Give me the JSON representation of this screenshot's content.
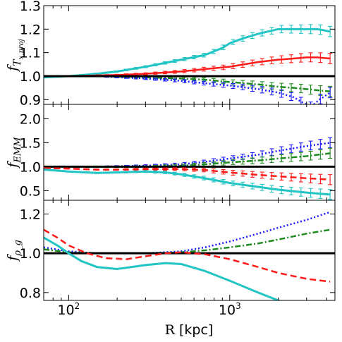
{
  "chart_data": [
    {
      "type": "line",
      "ylabel": "f_{T_{x,proj}}",
      "ylim": [
        0.88,
        1.3
      ],
      "yticks": [
        "0.9",
        "1.0",
        "1.1",
        "1.2",
        "1.3"
      ],
      "ytick_values": [
        0.9,
        1.0,
        1.1,
        1.2,
        1.3
      ],
      "xscale": "log",
      "xlim": [
        70,
        4500
      ],
      "series": [
        {
          "color": "#22c4c4",
          "style": "solid",
          "errorbars": true,
          "x": [
            70,
            100,
            150,
            200,
            300,
            500,
            700,
            900,
            1000,
            1200,
            1500,
            2000,
            2500,
            3000,
            3500,
            4200
          ],
          "y": [
            0.995,
            1.0,
            1.01,
            1.02,
            1.04,
            1.07,
            1.09,
            1.12,
            1.14,
            1.16,
            1.18,
            1.2,
            1.2,
            1.2,
            1.2,
            1.19
          ]
        },
        {
          "color": "#ff1a1a",
          "style": "solid",
          "errorbars": true,
          "x": [
            70,
            100,
            200,
            300,
            500,
            700,
            1000,
            1500,
            2000,
            2500,
            3000,
            3500,
            4200
          ],
          "y": [
            1.0,
            1.0,
            1.005,
            1.01,
            1.02,
            1.03,
            1.04,
            1.06,
            1.07,
            1.075,
            1.08,
            1.08,
            1.075
          ]
        },
        {
          "color": "#1f8a1f",
          "style": "dashdot",
          "errorbars": true,
          "x": [
            70,
            150,
            300,
            500,
            700,
            1000,
            1500,
            2000,
            2500,
            3000,
            3500,
            4200
          ],
          "y": [
            1.0,
            1.0,
            0.995,
            0.99,
            0.985,
            0.975,
            0.965,
            0.955,
            0.95,
            0.945,
            0.94,
            0.935
          ]
        },
        {
          "color": "#1a1aff",
          "style": "dotted",
          "errorbars": true,
          "x": [
            70,
            150,
            300,
            500,
            700,
            1000,
            1500,
            2000,
            2500,
            2800,
            3200,
            3600,
            4200
          ],
          "y": [
            1.0,
            1.0,
            0.99,
            0.98,
            0.97,
            0.96,
            0.945,
            0.93,
            0.91,
            0.89,
            0.87,
            0.9,
            0.93
          ]
        },
        {
          "color": "#000000",
          "style": "solid",
          "errorbars": true,
          "x": [
            70,
            4500
          ],
          "y": [
            1.0,
            1.0
          ]
        }
      ]
    },
    {
      "type": "line",
      "ylabel": "f_{EMM}",
      "ylim": [
        0.3,
        2.3
      ],
      "yticks": [
        "0.5",
        "1.0",
        "1.5",
        "2.0"
      ],
      "ytick_values": [
        0.5,
        1.0,
        1.5,
        2.0
      ],
      "xscale": "log",
      "xlim": [
        70,
        4500
      ],
      "series": [
        {
          "color": "#1a1aff",
          "style": "dotted",
          "errorbars": true,
          "x": [
            70,
            150,
            300,
            500,
            700,
            1000,
            1500,
            2000,
            3000,
            4200
          ],
          "y": [
            1.0,
            1.0,
            1.02,
            1.05,
            1.1,
            1.17,
            1.25,
            1.33,
            1.43,
            1.5
          ]
        },
        {
          "color": "#1f8a1f",
          "style": "dashdot",
          "errorbars": true,
          "x": [
            70,
            150,
            300,
            500,
            700,
            1000,
            1500,
            2000,
            3000,
            4200
          ],
          "y": [
            1.0,
            1.0,
            1.0,
            1.02,
            1.05,
            1.09,
            1.13,
            1.17,
            1.22,
            1.28
          ]
        },
        {
          "color": "#000000",
          "style": "solid",
          "errorbars": true,
          "x": [
            70,
            4500
          ],
          "y": [
            1.0,
            1.0
          ]
        },
        {
          "color": "#ff1a1a",
          "style": "dashed",
          "errorbars": true,
          "x": [
            70,
            100,
            150,
            200,
            300,
            500,
            700,
            1000,
            1500,
            2000,
            3000,
            4200
          ],
          "y": [
            0.97,
            0.96,
            0.94,
            0.94,
            0.95,
            0.95,
            0.93,
            0.88,
            0.83,
            0.8,
            0.76,
            0.73
          ]
        },
        {
          "color": "#22c4c4",
          "style": "solid",
          "errorbars": true,
          "x": [
            70,
            100,
            150,
            200,
            300,
            400,
            500,
            700,
            1000,
            1500,
            2000,
            3000,
            4200
          ],
          "y": [
            0.94,
            0.9,
            0.87,
            0.88,
            0.9,
            0.88,
            0.84,
            0.76,
            0.66,
            0.58,
            0.52,
            0.46,
            0.42
          ]
        }
      ]
    },
    {
      "type": "line",
      "ylabel": "f_{ρ_g}",
      "ylim": [
        0.76,
        1.27
      ],
      "yticks": [
        "0.8",
        "1.0",
        "1.2"
      ],
      "ytick_values": [
        0.8,
        1.0,
        1.2
      ],
      "xscale": "log",
      "xlim": [
        70,
        4500
      ],
      "series": [
        {
          "color": "#1a1aff",
          "style": "dotted",
          "x": [
            70,
            100,
            150,
            200,
            300,
            500,
            700,
            1000,
            1500,
            2000,
            3000,
            4200
          ],
          "y": [
            1.03,
            1.01,
            1.0,
            1.0,
            1.0,
            1.01,
            1.03,
            1.06,
            1.1,
            1.13,
            1.17,
            1.21
          ]
        },
        {
          "color": "#1f8a1f",
          "style": "dashdot",
          "x": [
            70,
            100,
            150,
            200,
            300,
            500,
            700,
            1000,
            1500,
            2000,
            3000,
            4200
          ],
          "y": [
            1.02,
            1.005,
            1.0,
            1.0,
            1.0,
            1.005,
            1.015,
            1.03,
            1.05,
            1.07,
            1.1,
            1.12
          ]
        },
        {
          "color": "#000000",
          "style": "solid",
          "x": [
            70,
            4500
          ],
          "y": [
            1.0,
            1.0
          ]
        },
        {
          "color": "#ff1a1a",
          "style": "dashed",
          "x": [
            70,
            85,
            100,
            130,
            170,
            230,
            300,
            400,
            500,
            700,
            1000,
            1500,
            2000,
            3000,
            4200
          ],
          "y": [
            1.12,
            1.08,
            1.04,
            1.0,
            0.975,
            0.97,
            0.985,
            1.0,
            1.005,
            0.995,
            0.97,
            0.93,
            0.9,
            0.87,
            0.855
          ]
        },
        {
          "color": "#22c4c4",
          "style": "solid",
          "x": [
            70,
            85,
            100,
            120,
            150,
            200,
            300,
            400,
            500,
            700,
            1000,
            1500,
            2000,
            2400
          ],
          "y": [
            1.08,
            1.04,
            1.0,
            0.96,
            0.93,
            0.92,
            0.94,
            0.95,
            0.945,
            0.91,
            0.86,
            0.8,
            0.76,
            0.73
          ]
        }
      ]
    }
  ],
  "xaxis": {
    "label_symbol": "R",
    "label_unit": "[kpc]",
    "ticks": [
      {
        "value": 100,
        "base": "10",
        "exp": "2"
      },
      {
        "value": 1000,
        "base": "10",
        "exp": "3"
      }
    ]
  }
}
